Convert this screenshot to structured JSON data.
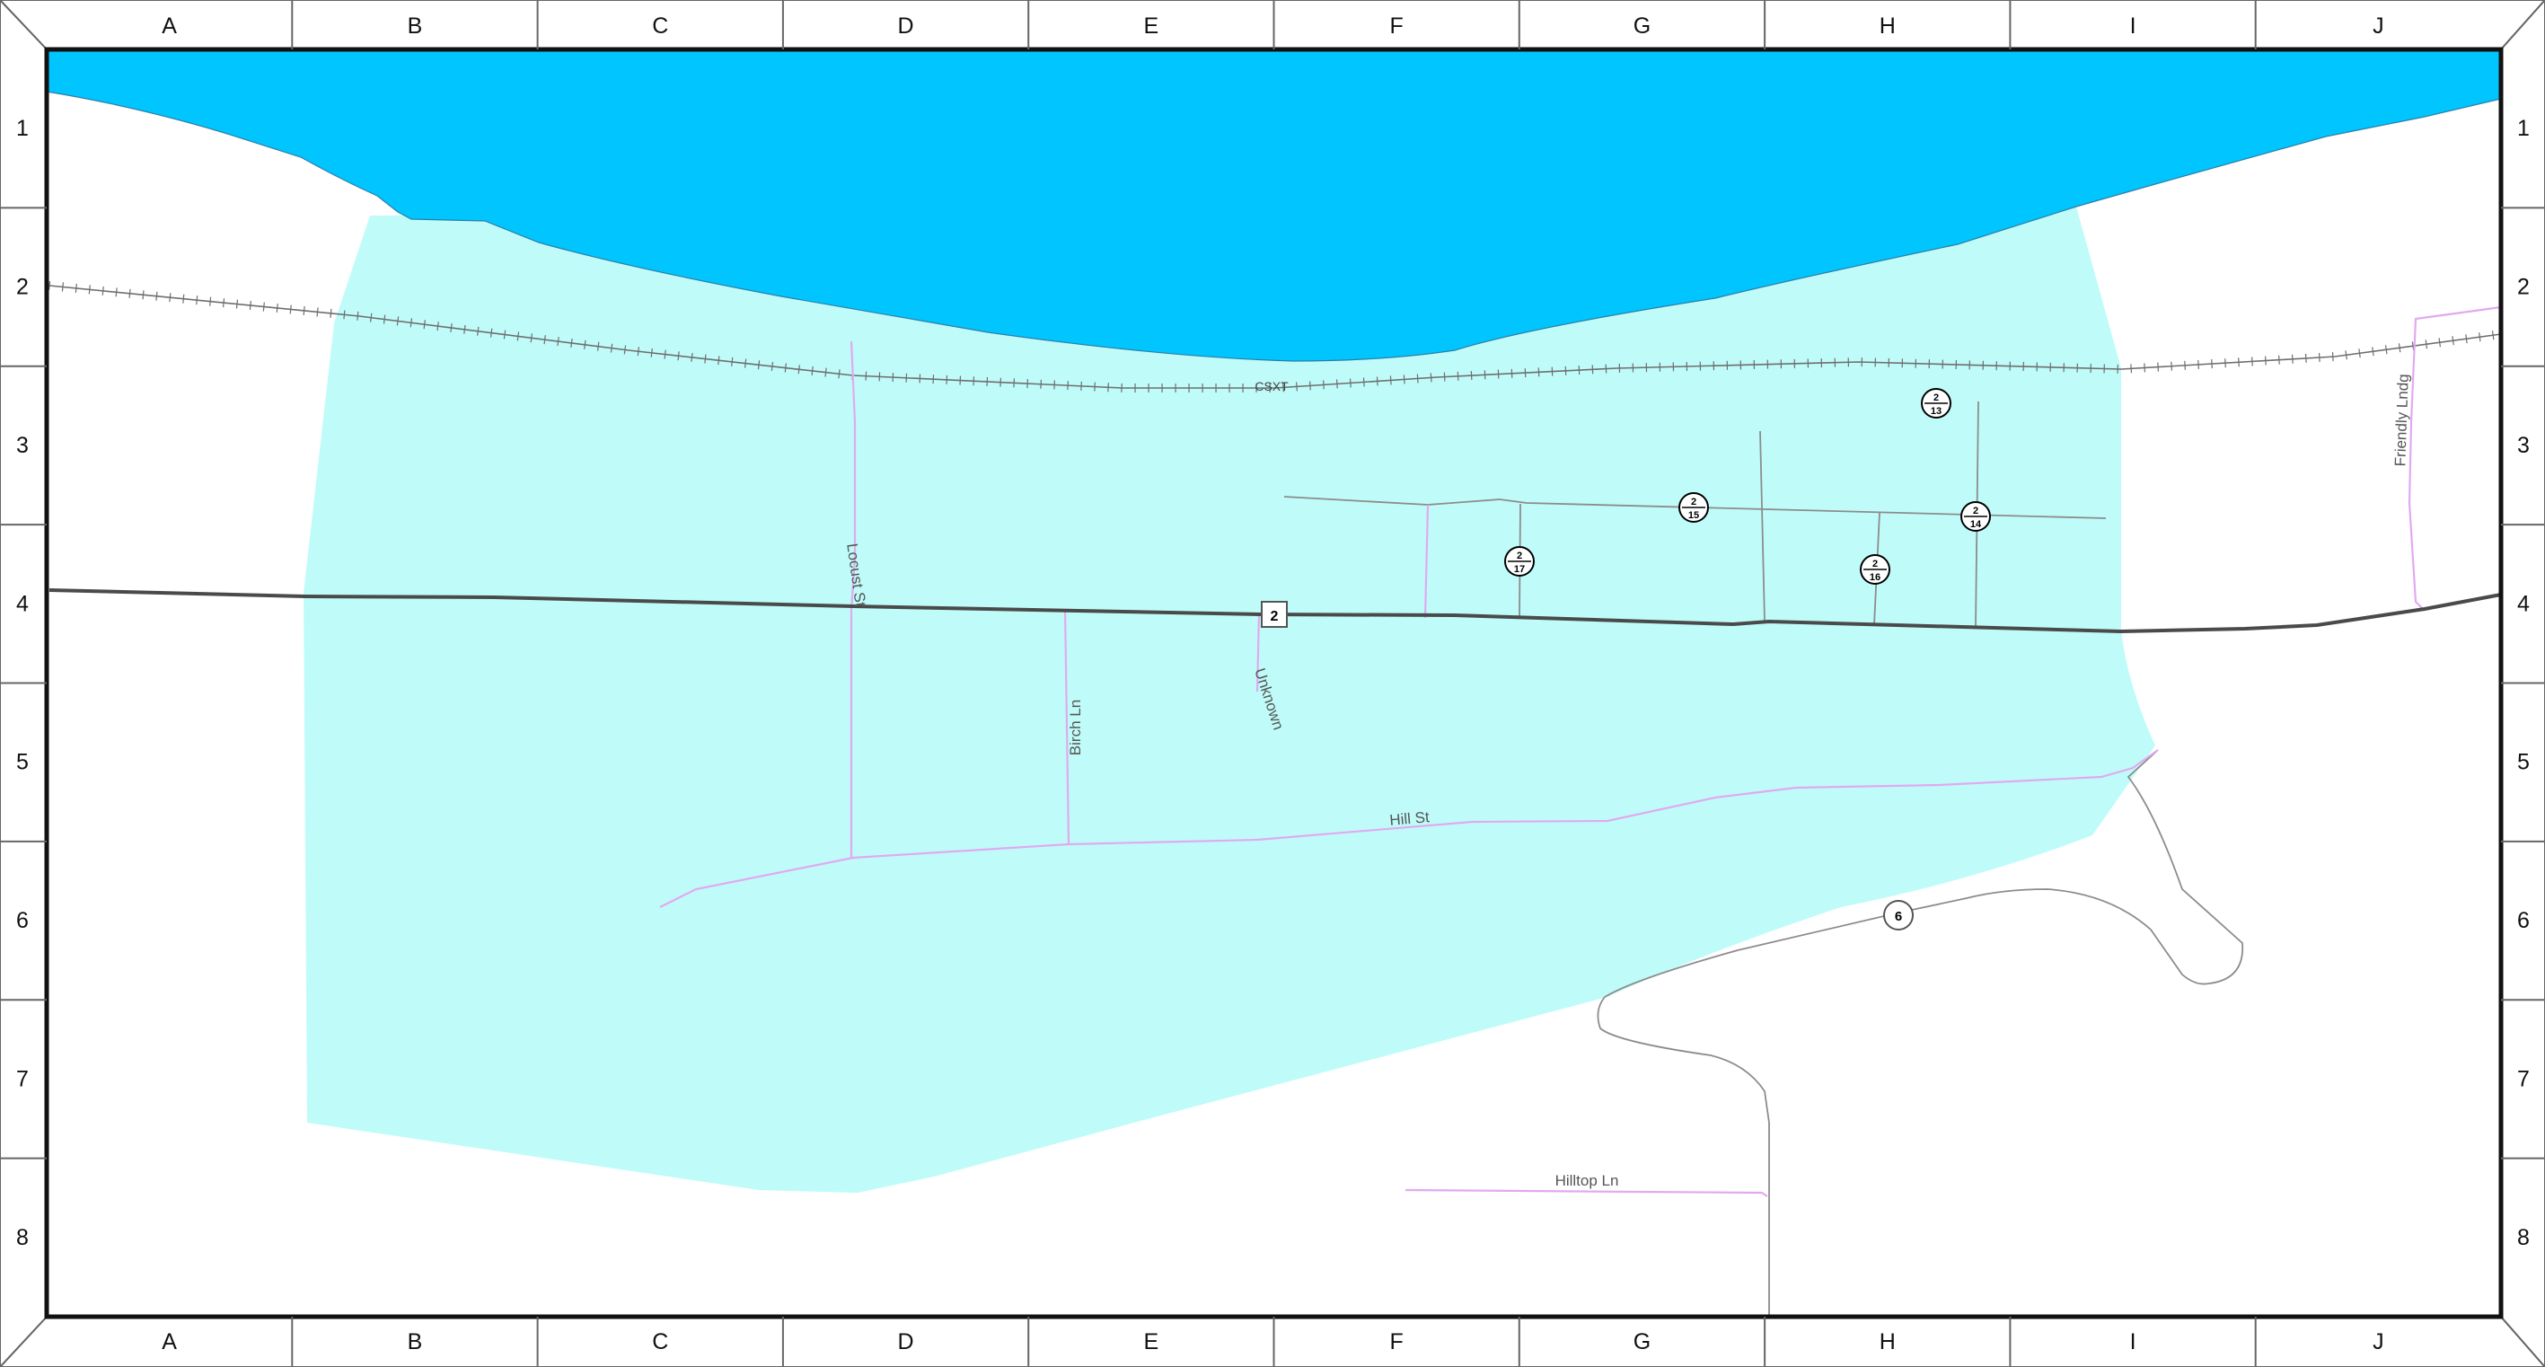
{
  "grid": {
    "columns": [
      "A",
      "B",
      "C",
      "D",
      "E",
      "F",
      "G",
      "H",
      "I",
      "J"
    ],
    "rows": [
      "1",
      "2",
      "3",
      "4",
      "5",
      "6",
      "7",
      "8"
    ]
  },
  "colors": {
    "water": "#00c5ff",
    "area": "#bffcf9",
    "local_street": "#e2a9f0",
    "highway": "#4a4a4a",
    "minor_road": "#8c8c8c",
    "railroad": "#6e6e6e",
    "frame": "#111111"
  },
  "labels": {
    "railroad": "CSXT",
    "locust": "Locust St",
    "birch": "Birch Ln",
    "unknown": "Unknown",
    "hill": "Hill St",
    "friendly": "Friendly Lndg",
    "hilltop": "Hilltop Ln"
  },
  "shields": {
    "route_2": "2",
    "route_6": "6",
    "c13": {
      "top": "2",
      "bottom": "13"
    },
    "c15": {
      "top": "2",
      "bottom": "15"
    },
    "c14": {
      "top": "2",
      "bottom": "14"
    },
    "c17": {
      "top": "2",
      "bottom": "17"
    },
    "c16": {
      "top": "2",
      "bottom": "16"
    }
  }
}
